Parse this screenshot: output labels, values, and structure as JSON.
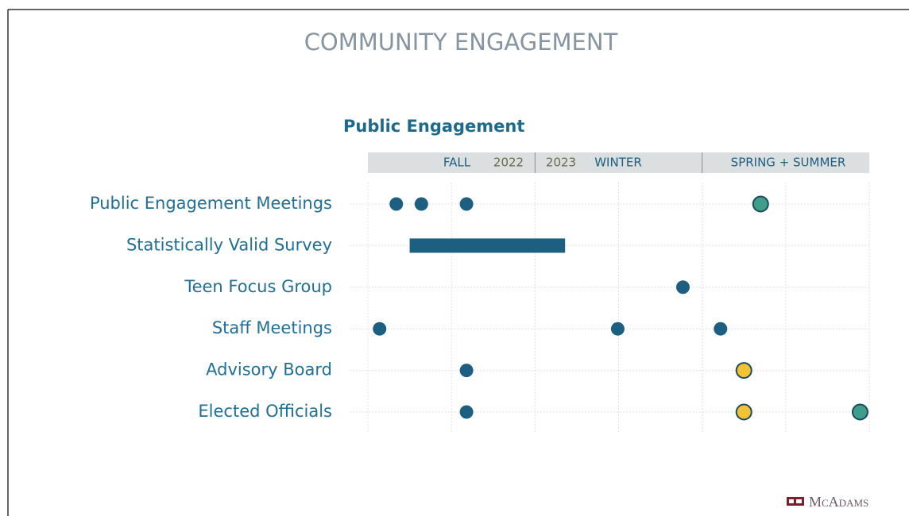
{
  "title": "COMMUNITY ENGAGEMENT",
  "logo": "McAdams",
  "chart_data": {
    "type": "timeline",
    "title": "Public Engagement",
    "periods": [
      "FALL",
      "2022",
      "2023",
      "WINTER",
      "SPRING + SUMMER"
    ],
    "categories": [
      "Public Engagement Meetings",
      "Statistically Valid Survey",
      "Teen Focus Group",
      "Staff Meetings",
      "Advisory Board",
      "Elected Officials"
    ],
    "xlim": [
      0,
      6
    ],
    "xticks": [
      0,
      1,
      2,
      3,
      4,
      5,
      6
    ],
    "grid": true,
    "events": [
      {
        "row": 0,
        "x": 0.34,
        "color": "#1d5f80"
      },
      {
        "row": 0,
        "x": 0.64,
        "color": "#1d5f80"
      },
      {
        "row": 0,
        "x": 1.18,
        "color": "#1d5f80"
      },
      {
        "row": 0,
        "x": 4.7,
        "color": "#3f9e8a"
      },
      {
        "row": 2,
        "x": 3.77,
        "color": "#1d5f80"
      },
      {
        "row": 3,
        "x": 0.14,
        "color": "#1d5f80"
      },
      {
        "row": 3,
        "x": 2.99,
        "color": "#1d5f80"
      },
      {
        "row": 3,
        "x": 4.22,
        "color": "#1d5f80"
      },
      {
        "row": 4,
        "x": 1.18,
        "color": "#1d5f80"
      },
      {
        "row": 4,
        "x": 4.5,
        "color": "#f1c232"
      },
      {
        "row": 5,
        "x": 1.18,
        "color": "#1d5f80"
      },
      {
        "row": 5,
        "x": 4.5,
        "color": "#f1c232"
      },
      {
        "row": 5,
        "x": 5.89,
        "color": "#3f9e8a"
      }
    ],
    "bars": [
      {
        "row": 1,
        "start": 0.5,
        "end": 2.36,
        "color": "#1d5f80"
      }
    ]
  }
}
